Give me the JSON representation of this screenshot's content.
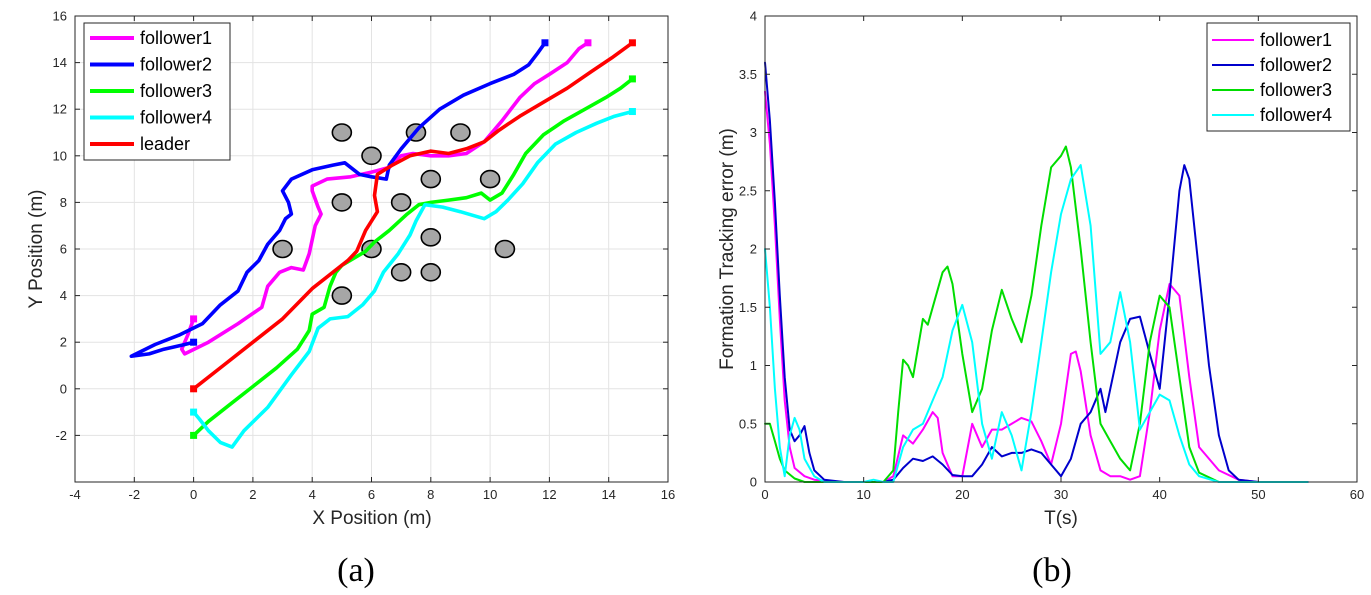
{
  "chart_data": [
    {
      "type": "line",
      "panel": "(a)",
      "xlabel": "X Position (m)",
      "ylabel": "Y Position (m)",
      "xlim": [
        -4,
        16
      ],
      "ylim": [
        -4,
        16
      ],
      "xticks": [
        -4,
        -2,
        0,
        2,
        4,
        6,
        8,
        10,
        12,
        14,
        16
      ],
      "yticks": [
        -2,
        0,
        2,
        4,
        6,
        8,
        10,
        12,
        14,
        16
      ],
      "grid": true,
      "legend": "top-left",
      "series": [
        {
          "name": "follower1",
          "color": "#ff00ff",
          "x": [
            0,
            -0.2,
            -0.4,
            -0.3,
            0.5,
            1.5,
            2.3,
            2.5,
            2.9,
            3.3,
            3.7,
            3.9,
            4.1,
            4.3,
            4.2,
            4.0,
            4.0,
            4.5,
            5.3,
            6.0,
            6.6,
            6.8,
            7.0,
            7.4,
            8.0,
            8.6,
            9.2,
            9.8,
            10.4,
            11.0,
            11.5,
            12.0,
            12.6,
            13.0,
            13.3
          ],
          "y": [
            3.0,
            2.3,
            1.7,
            1.5,
            2.0,
            2.8,
            3.5,
            4.4,
            5.0,
            5.2,
            5.1,
            5.8,
            7.0,
            7.5,
            7.8,
            8.5,
            8.7,
            9.0,
            9.1,
            9.3,
            9.5,
            9.8,
            10.0,
            10.1,
            10.0,
            10.0,
            10.1,
            10.6,
            11.5,
            12.5,
            13.1,
            13.5,
            14.0,
            14.6,
            14.85
          ]
        },
        {
          "name": "follower2",
          "color": "#0000ff",
          "x": [
            0,
            -0.3,
            -1.0,
            -1.5,
            -2.1,
            -1.3,
            -0.5,
            0.3,
            0.9,
            1.5,
            1.8,
            2.2,
            2.5,
            2.9,
            3.1,
            3.3,
            3.2,
            3.0,
            3.3,
            4.0,
            4.7,
            5.1,
            5.6,
            6.0,
            6.5,
            6.6,
            7.0,
            7.6,
            8.3,
            9.1,
            10.0,
            10.8,
            11.3,
            11.6,
            11.85
          ],
          "y": [
            2.0,
            1.9,
            1.7,
            1.5,
            1.4,
            1.9,
            2.3,
            2.8,
            3.6,
            4.2,
            5.0,
            5.5,
            6.2,
            6.8,
            7.3,
            7.5,
            8.0,
            8.5,
            9.0,
            9.4,
            9.6,
            9.7,
            9.2,
            9.1,
            9.0,
            9.6,
            10.3,
            11.2,
            12.0,
            12.6,
            13.1,
            13.5,
            13.9,
            14.4,
            14.85
          ]
        },
        {
          "name": "follower3",
          "color": "#00ff00",
          "x": [
            0,
            0.5,
            1.2,
            2.0,
            2.8,
            3.5,
            3.9,
            4.0,
            4.4,
            4.6,
            4.8,
            5.0,
            5.4,
            5.8,
            6.1,
            6.6,
            7.2,
            7.6,
            8.0,
            8.6,
            9.2,
            9.7,
            10.0,
            10.4,
            10.8,
            11.2,
            11.8,
            12.5,
            13.2,
            13.9,
            14.4,
            14.8
          ],
          "y": [
            -2.0,
            -1.4,
            -0.7,
            0.1,
            0.9,
            1.7,
            2.5,
            3.2,
            3.5,
            4.4,
            5.0,
            5.3,
            5.6,
            5.9,
            6.3,
            6.8,
            7.5,
            7.9,
            8.0,
            8.1,
            8.2,
            8.4,
            8.1,
            8.4,
            9.2,
            10.1,
            10.9,
            11.5,
            12.0,
            12.5,
            12.9,
            13.3
          ]
        },
        {
          "name": "follower4",
          "color": "#00ffff",
          "x": [
            0,
            0.2,
            0.5,
            0.9,
            1.3,
            1.7,
            2.5,
            3.3,
            3.9,
            4.2,
            4.6,
            5.2,
            5.7,
            6.1,
            6.4,
            6.9,
            7.3,
            7.5,
            7.8,
            8.4,
            9.0,
            9.8,
            10.2,
            10.6,
            11.1,
            11.6,
            12.2,
            12.9,
            13.6,
            14.2,
            14.8
          ],
          "y": [
            -1.0,
            -1.3,
            -1.8,
            -2.3,
            -2.5,
            -1.8,
            -0.8,
            0.6,
            1.6,
            2.6,
            3.0,
            3.1,
            3.6,
            4.2,
            5.0,
            5.8,
            6.6,
            7.2,
            7.9,
            7.8,
            7.6,
            7.3,
            7.6,
            8.1,
            8.8,
            9.7,
            10.5,
            11.0,
            11.4,
            11.7,
            11.9
          ]
        },
        {
          "name": "leader",
          "color": "#ff0000",
          "x": [
            0,
            1.0,
            2.0,
            3.0,
            4.0,
            4.6,
            5.2,
            5.5,
            5.8,
            6.2,
            6.1,
            6.2,
            6.7,
            7.3,
            8.0,
            8.6,
            9.2,
            9.8,
            10.3,
            11.0,
            11.8,
            12.6,
            13.4,
            14.1,
            14.8
          ],
          "y": [
            0.0,
            1.0,
            2.0,
            3.0,
            4.3,
            4.9,
            5.5,
            5.9,
            6.8,
            7.6,
            8.3,
            9.2,
            9.6,
            10.0,
            10.2,
            10.1,
            10.3,
            10.6,
            11.1,
            11.7,
            12.3,
            12.9,
            13.6,
            14.2,
            14.85
          ]
        }
      ],
      "obstacles": {
        "x": [
          5.0,
          6.0,
          7.5,
          9.0,
          5.0,
          7.0,
          8.0,
          10.0,
          3.0,
          6.0,
          8.0,
          10.5,
          7.0,
          8.0,
          5.0
        ],
        "y": [
          11.0,
          10.0,
          11.0,
          11.0,
          8.0,
          8.0,
          9.0,
          9.0,
          6.0,
          6.0,
          6.5,
          6.0,
          5.0,
          5.0,
          4.0
        ]
      }
    },
    {
      "type": "line",
      "panel": "(b)",
      "xlabel": "T(s)",
      "ylabel": "Formation Tracking error (m)",
      "xlim": [
        0,
        60
      ],
      "ylim": [
        0,
        4
      ],
      "xticks": [
        0,
        10,
        20,
        30,
        40,
        50,
        60
      ],
      "yticks": [
        0,
        0.5,
        1,
        1.5,
        2,
        2.5,
        3,
        3.5,
        4
      ],
      "grid": false,
      "legend": "top-right",
      "series": [
        {
          "name": "follower1",
          "color": "#ff00ff",
          "x": [
            0,
            0.5,
            1,
            1.5,
            2,
            2.5,
            3,
            4,
            5,
            6,
            8,
            10,
            12,
            13,
            14,
            15,
            16,
            17,
            17.5,
            18,
            19,
            20,
            21,
            22,
            23,
            24,
            25,
            26,
            27,
            28,
            29,
            30,
            31,
            31.5,
            32,
            33,
            34,
            35,
            36,
            37,
            38,
            39,
            40,
            41,
            42,
            43,
            44,
            46,
            48,
            50,
            55
          ],
          "y": [
            3.35,
            2.9,
            2.2,
            1.4,
            0.7,
            0.3,
            0.12,
            0.05,
            0.02,
            0.01,
            0.0,
            0.0,
            0.0,
            0.05,
            0.4,
            0.33,
            0.45,
            0.6,
            0.55,
            0.25,
            0.05,
            0.05,
            0.5,
            0.3,
            0.45,
            0.45,
            0.5,
            0.55,
            0.52,
            0.35,
            0.15,
            0.5,
            1.1,
            1.12,
            0.95,
            0.4,
            0.1,
            0.05,
            0.05,
            0.02,
            0.05,
            0.6,
            1.3,
            1.7,
            1.6,
            0.9,
            0.3,
            0.1,
            0.02,
            0.0,
            0.0
          ]
        },
        {
          "name": "follower2",
          "color": "#0000cc",
          "x": [
            0,
            0.5,
            1,
            1.5,
            2,
            2.5,
            3,
            3.5,
            4,
            4.5,
            5,
            6,
            8,
            10,
            12,
            13,
            14,
            15,
            16,
            17,
            18,
            19,
            20,
            21,
            22,
            23,
            24,
            25,
            26,
            27,
            28,
            29,
            30,
            31,
            32,
            33,
            34,
            34.5,
            35,
            36,
            37,
            38,
            39,
            40,
            41,
            42,
            42.5,
            43,
            44,
            45,
            46,
            47,
            48,
            50,
            55
          ],
          "y": [
            3.6,
            3.1,
            2.4,
            1.6,
            0.9,
            0.45,
            0.35,
            0.4,
            0.48,
            0.25,
            0.1,
            0.02,
            0.0,
            0.0,
            0.0,
            0.02,
            0.12,
            0.2,
            0.18,
            0.22,
            0.15,
            0.06,
            0.05,
            0.05,
            0.15,
            0.3,
            0.22,
            0.25,
            0.25,
            0.28,
            0.25,
            0.15,
            0.05,
            0.2,
            0.5,
            0.6,
            0.8,
            0.6,
            0.8,
            1.2,
            1.4,
            1.42,
            1.1,
            0.8,
            1.6,
            2.5,
            2.72,
            2.6,
            1.8,
            1.0,
            0.4,
            0.1,
            0.02,
            0.0,
            0.0
          ]
        },
        {
          "name": "follower3",
          "color": "#00dd00",
          "x": [
            0,
            0.5,
            1,
            1.5,
            2,
            3,
            4,
            5,
            6,
            8,
            10,
            12,
            13,
            13.5,
            14,
            14.5,
            15,
            16,
            16.5,
            17,
            18,
            18.5,
            19,
            20,
            21,
            22,
            23,
            24,
            25,
            26,
            27,
            28,
            29,
            30,
            30.5,
            31,
            32,
            33,
            34,
            35,
            36,
            37,
            38,
            39,
            40,
            41,
            42,
            43,
            44,
            46,
            48
          ],
          "y": [
            0.5,
            0.5,
            0.35,
            0.2,
            0.1,
            0.03,
            0.0,
            0.0,
            0.0,
            0.0,
            0.0,
            0.0,
            0.1,
            0.6,
            1.05,
            1.0,
            0.9,
            1.4,
            1.35,
            1.5,
            1.8,
            1.85,
            1.7,
            1.1,
            0.6,
            0.8,
            1.3,
            1.65,
            1.4,
            1.2,
            1.6,
            2.2,
            2.7,
            2.8,
            2.88,
            2.7,
            2.0,
            1.2,
            0.5,
            0.35,
            0.2,
            0.1,
            0.5,
            1.2,
            1.6,
            1.5,
            0.9,
            0.3,
            0.08,
            0.0,
            0.0
          ]
        },
        {
          "name": "follower4",
          "color": "#00ffff",
          "x": [
            0,
            0.5,
            1,
            1.5,
            2,
            2.5,
            3,
            3.5,
            4,
            5,
            6,
            8,
            10,
            11,
            12,
            13,
            14,
            15,
            16,
            17,
            18,
            19,
            20,
            21,
            22,
            23,
            24,
            25,
            26,
            27,
            28,
            29,
            30,
            31,
            32,
            33,
            34,
            35,
            36,
            37,
            38,
            39,
            40,
            41,
            42,
            43,
            44,
            46,
            48,
            50,
            55
          ],
          "y": [
            2.0,
            1.5,
            0.8,
            0.3,
            0.05,
            0.4,
            0.55,
            0.45,
            0.2,
            0.05,
            0.0,
            0.0,
            0.0,
            0.02,
            0.0,
            0.0,
            0.3,
            0.45,
            0.5,
            0.7,
            0.9,
            1.3,
            1.52,
            1.2,
            0.5,
            0.2,
            0.6,
            0.4,
            0.1,
            0.6,
            1.2,
            1.8,
            2.3,
            2.6,
            2.72,
            2.2,
            1.1,
            1.2,
            1.63,
            1.2,
            0.45,
            0.6,
            0.75,
            0.7,
            0.4,
            0.15,
            0.05,
            0.0,
            0.0,
            0.0,
            0.0
          ]
        }
      ]
    }
  ],
  "captions": {
    "a": "(a)",
    "b": "(b)"
  }
}
